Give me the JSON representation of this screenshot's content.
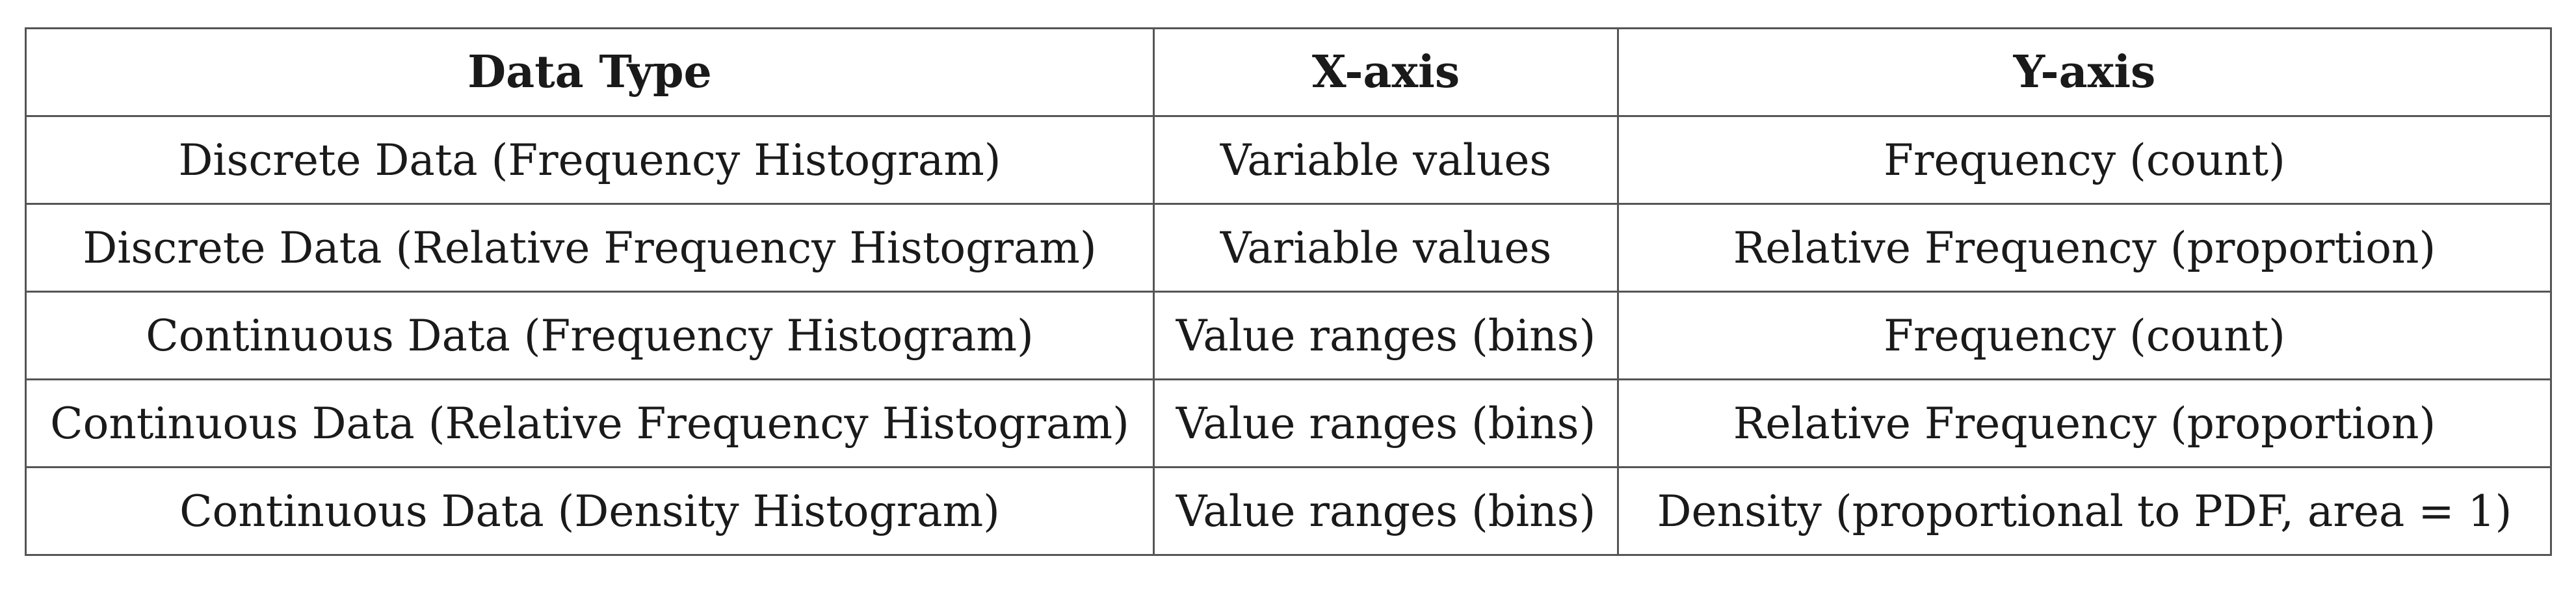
{
  "table": {
    "headers": [
      "Data Type",
      "X-axis",
      "Y-axis"
    ],
    "rows": [
      [
        "Discrete Data (Frequency Histogram)",
        "Variable values",
        "Frequency (count)"
      ],
      [
        "Discrete Data (Relative Frequency Histogram)",
        "Variable values",
        "Relative Frequency (proportion)"
      ],
      [
        "Continuous Data (Frequency Histogram)",
        "Value ranges (bins)",
        "Frequency (count)"
      ],
      [
        "Continuous Data (Relative Frequency Histogram)",
        "Value ranges (bins)",
        "Relative Frequency (proportion)"
      ],
      [
        "Continuous Data (Density Histogram)",
        "Value ranges (bins)",
        "Density (proportional to PDF, area = 1)"
      ]
    ]
  }
}
